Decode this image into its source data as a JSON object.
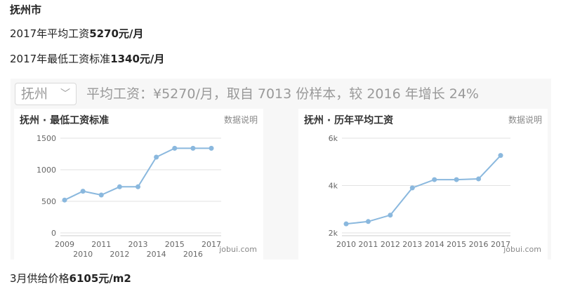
{
  "article": {
    "city_heading": "抚州市",
    "avg_prefix": "2017年平均工资",
    "avg_value": "5270元/月",
    "min_prefix": "2017年最低工资标准",
    "min_value": "1340元/月",
    "price_prefix": "3月供给价格",
    "price_value": "6105元/m2"
  },
  "banner": {
    "city": "抚州",
    "chevron": "chevron-down-icon",
    "summary": "平均工资：¥5270/月，取自 7013 份样本，较 2016 年增长 24%"
  },
  "chart_data": [
    {
      "type": "line",
      "title": "抚州 · 最低工资标准",
      "link": "数据说明",
      "watermark": "jobui.com",
      "x_labels_top": [
        "2009",
        "2011",
        "2013",
        "2015",
        "2017"
      ],
      "x_labels_bottom": [
        "2010",
        "2012",
        "2014",
        "2016"
      ],
      "y_ticks": [
        "0",
        "500",
        "1000",
        "1500"
      ],
      "ylim": [
        0,
        1500
      ],
      "x": [
        2009,
        2010,
        2011,
        2012,
        2013,
        2014,
        2015,
        2016,
        2017
      ],
      "values": [
        520,
        660,
        600,
        730,
        730,
        1200,
        1340,
        1340,
        1340
      ],
      "color": "#8ab8de",
      "grid": true
    },
    {
      "type": "line",
      "title": "抚州 · 历年平均工资",
      "link": "数据说明",
      "watermark": "jobui.com",
      "x_labels": [
        "2010",
        "2011",
        "2012",
        "2013",
        "2014",
        "2015",
        "2016",
        "2017"
      ],
      "y_ticks": [
        "2k",
        "4k",
        "6k"
      ],
      "ylim": [
        2000,
        6000
      ],
      "x": [
        2010,
        2011,
        2012,
        2013,
        2014,
        2015,
        2016,
        2017
      ],
      "values": [
        2380,
        2480,
        2750,
        3900,
        4250,
        4250,
        4280,
        5270
      ],
      "color": "#8ab8de",
      "grid": true
    }
  ]
}
